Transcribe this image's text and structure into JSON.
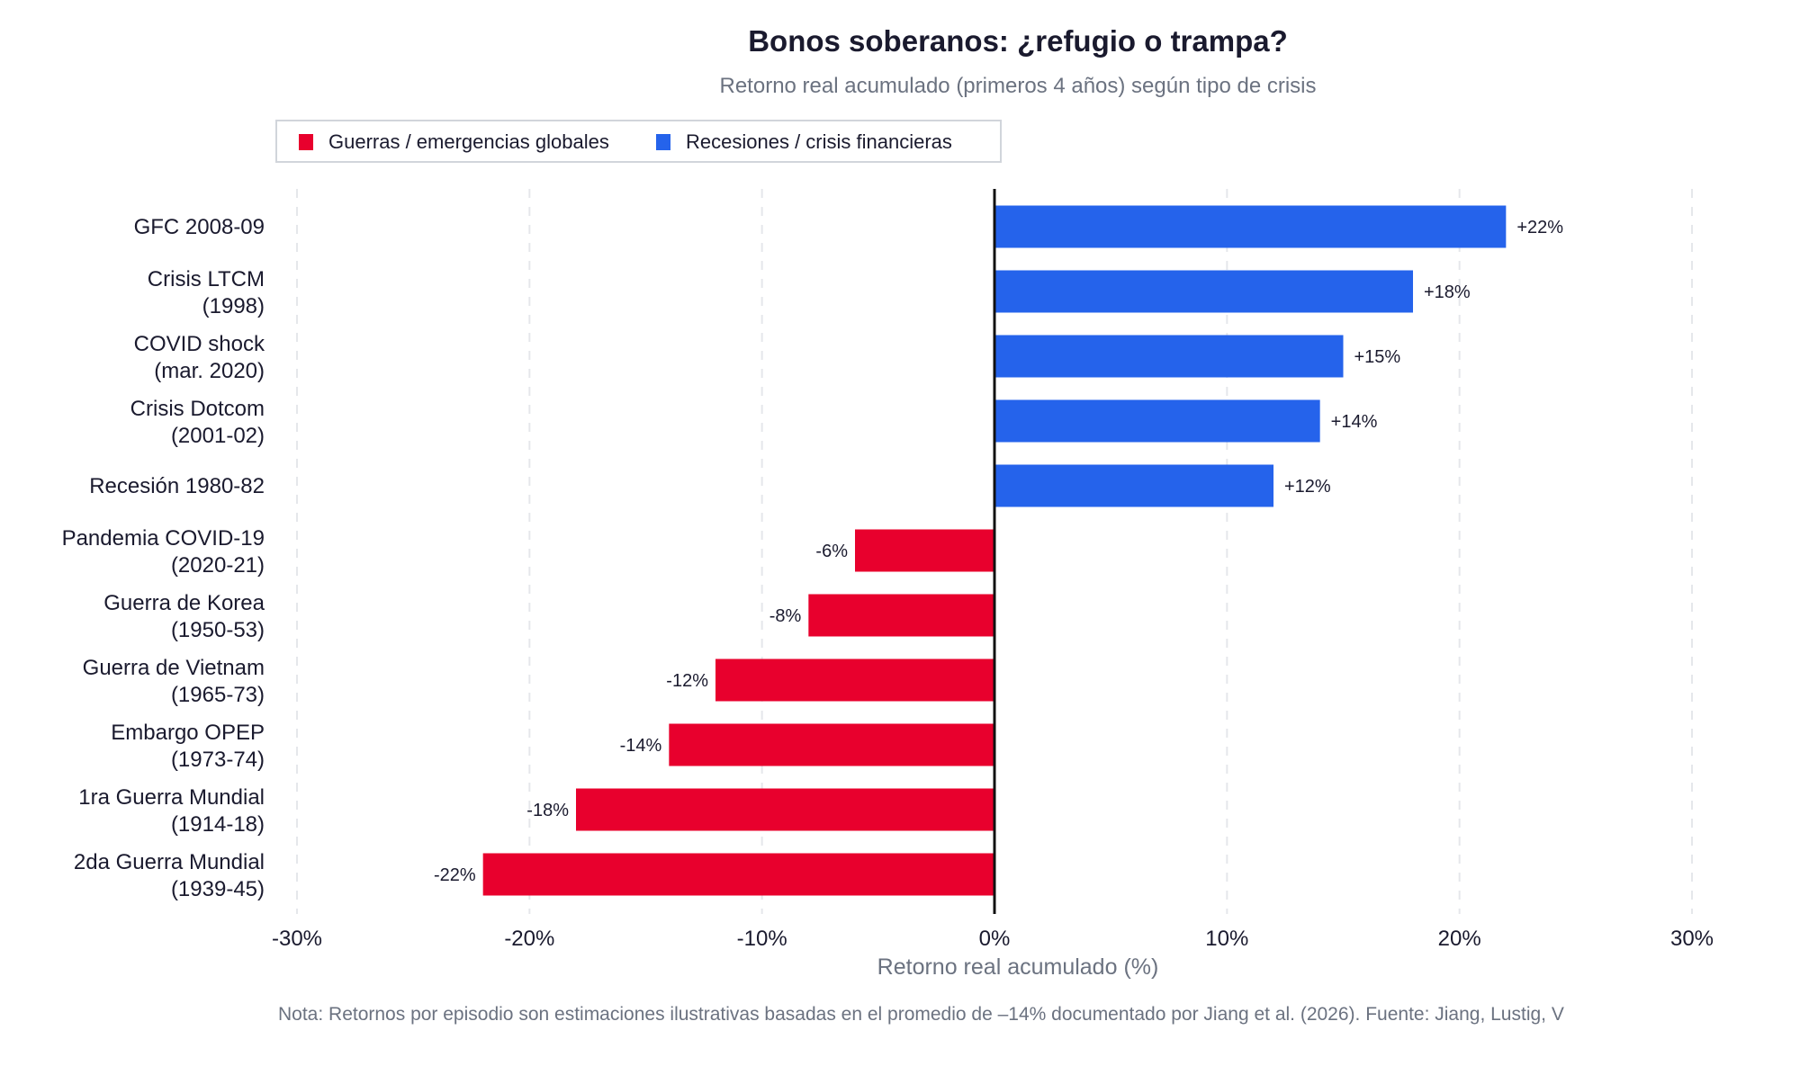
{
  "chart_data": {
    "type": "bar",
    "orientation": "horizontal",
    "title": "Bonos soberanos: ¿refugio o trampa?",
    "subtitle": "Retorno real acumulado (primeros 4 años) según tipo de crisis",
    "xlabel": "Retorno real acumulado (%)",
    "ylabel": "",
    "xlim": [
      -30,
      30
    ],
    "xticks": [
      -30,
      -20,
      -10,
      0,
      10,
      20,
      30
    ],
    "xtick_labels": [
      "-30%",
      "-20%",
      "-10%",
      "0%",
      "10%",
      "20%",
      "30%"
    ],
    "grid": "vertical dashed",
    "legend_position": "top-left",
    "legend": [
      {
        "label": "Guerras / emergencias globales",
        "color": "#E8002D"
      },
      {
        "label": "Recesiones / crisis financieras",
        "color": "#2563EB"
      }
    ],
    "categories": [
      [
        "GFC 2008-09"
      ],
      [
        "Crisis LTCM",
        "(1998)"
      ],
      [
        "COVID shock",
        "(mar. 2020)"
      ],
      [
        "Crisis Dotcom",
        "(2001-02)"
      ],
      [
        "Recesión 1980-82"
      ],
      [
        "Pandemia COVID-19",
        "(2020-21)"
      ],
      [
        "Guerra de Korea",
        "(1950-53)"
      ],
      [
        "Guerra de Vietnam",
        "(1965-73)"
      ],
      [
        "Embargo OPEP",
        "(1973-74)"
      ],
      [
        "1ra Guerra Mundial",
        "(1914-18)"
      ],
      [
        "2da Guerra Mundial",
        "(1939-45)"
      ]
    ],
    "values": [
      22,
      18,
      15,
      14,
      12,
      -6,
      -8,
      -12,
      -14,
      -18,
      -22
    ],
    "data_labels": [
      "+22%",
      "+18%",
      "+15%",
      "+14%",
      "+12%",
      "-6%",
      "-8%",
      "-12%",
      "-14%",
      "-18%",
      "-22%"
    ],
    "groups": [
      1,
      1,
      1,
      1,
      1,
      0,
      0,
      0,
      0,
      0,
      0
    ],
    "footnote": "Nota: Retornos por episodio son estimaciones ilustrativas basadas en el promedio de –14% documentado por Jiang et al. (2026). Fuente: Jiang, Lustig, V"
  }
}
